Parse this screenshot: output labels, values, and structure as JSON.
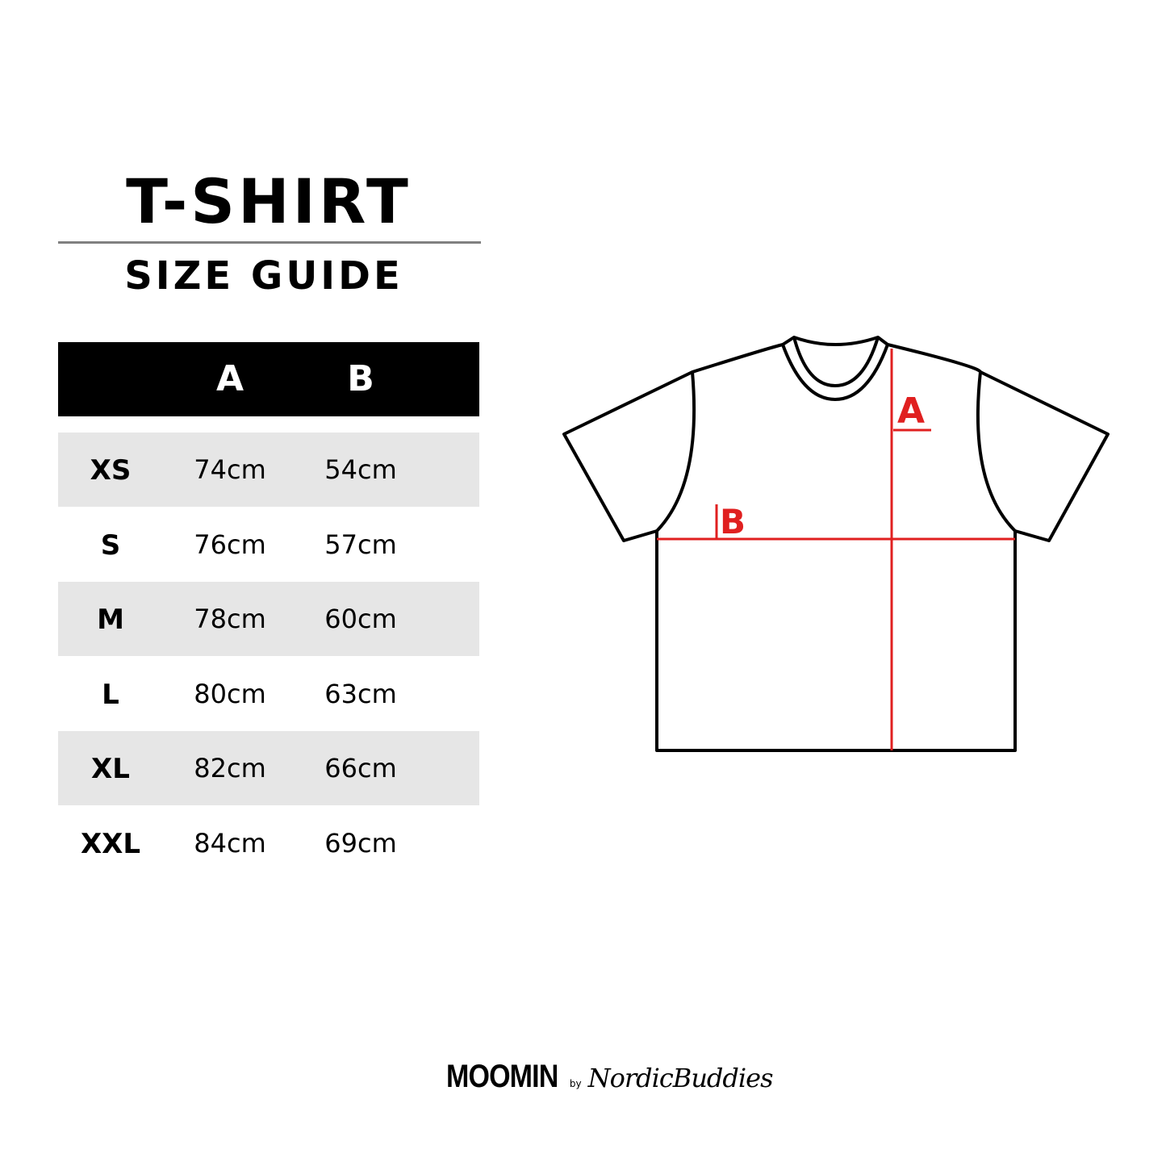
{
  "title": "T-SHIRT",
  "subtitle": "SIZE GUIDE",
  "table": {
    "headers": [
      "",
      "A",
      "B"
    ],
    "rows": [
      {
        "size": "XS",
        "a": "74cm",
        "b": "54cm"
      },
      {
        "size": "S",
        "a": "76cm",
        "b": "57cm"
      },
      {
        "size": "M",
        "a": "78cm",
        "b": "60cm"
      },
      {
        "size": "L",
        "a": "80cm",
        "b": "63cm"
      },
      {
        "size": "XL",
        "a": "82cm",
        "b": "66cm"
      },
      {
        "size": "XXL",
        "a": "84cm",
        "b": "69cm"
      }
    ]
  },
  "diagram": {
    "label_a": "A",
    "label_b": "B",
    "accent": "#e02020"
  },
  "logo": {
    "brand": "MOOMIN",
    "by": "by",
    "partner": "NordicBuddies"
  }
}
